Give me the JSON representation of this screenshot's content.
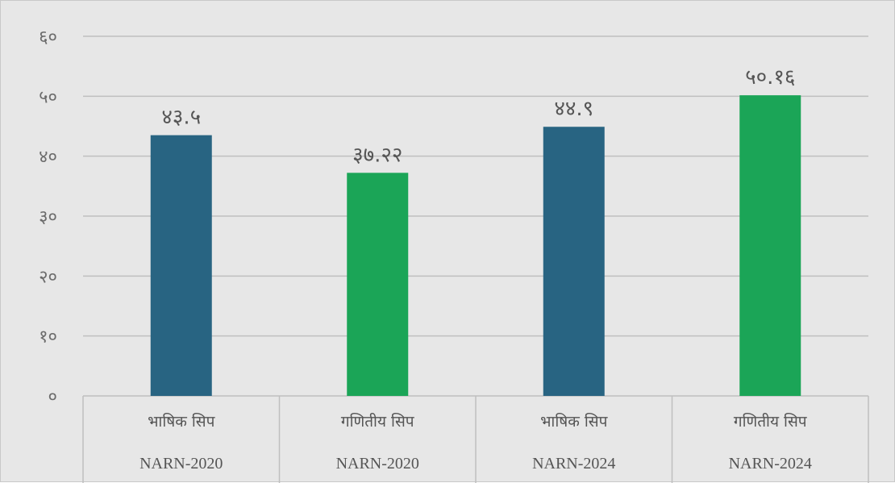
{
  "chart_data": {
    "type": "bar",
    "categories": [
      "भाषिक सिप",
      "गणितीय सिप",
      "भाषिक सिप",
      "गणितीय सिप"
    ],
    "groups": [
      "NARN-2020",
      "NARN-2020",
      "NARN-2024",
      "NARN-2024"
    ],
    "values": [
      43.5,
      37.22,
      44.9,
      50.16
    ],
    "data_labels": [
      "४३.५",
      "३७.२२",
      "४४.९",
      "५०.१६"
    ],
    "bar_colors": [
      "#286482",
      "#1ba557",
      "#286482",
      "#1ba557"
    ],
    "ylim": [
      0,
      60
    ],
    "yticks": [
      0,
      10,
      20,
      30,
      40,
      50,
      60
    ],
    "ytick_labels": [
      "०",
      "१०",
      "२०",
      "३०",
      "४०",
      "५०",
      "६०"
    ],
    "grid": true,
    "title": "",
    "xlabel": "",
    "ylabel": ""
  }
}
